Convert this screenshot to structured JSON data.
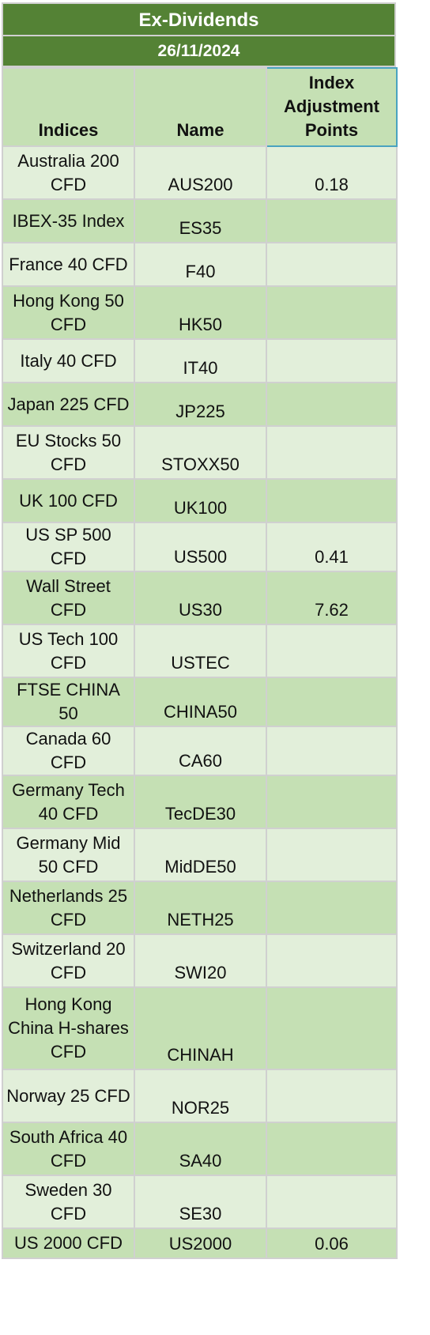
{
  "title": "Ex-Dividends",
  "date": "26/11/2024",
  "headers": {
    "indices": "Indices",
    "name": "Name",
    "adjustment": "Index Adjustment Points"
  },
  "rows": [
    {
      "index": "Australia 200 CFD",
      "name": "AUS200",
      "points": "0.18"
    },
    {
      "index": "IBEX-35 Index",
      "name": "ES35",
      "points": ""
    },
    {
      "index": "France 40 CFD",
      "name": "F40",
      "points": ""
    },
    {
      "index": "Hong Kong 50 CFD",
      "name": "HK50",
      "points": ""
    },
    {
      "index": "Italy 40 CFD",
      "name": "IT40",
      "points": ""
    },
    {
      "index": "Japan 225 CFD",
      "name": "JP225",
      "points": ""
    },
    {
      "index": "EU Stocks 50 CFD",
      "name": "STOXX50",
      "points": ""
    },
    {
      "index": "UK 100 CFD",
      "name": "UK100",
      "points": ""
    },
    {
      "index": "US SP 500 CFD",
      "name": "US500",
      "points": "0.41"
    },
    {
      "index": "Wall Street CFD",
      "name": "US30",
      "points": "7.62"
    },
    {
      "index": "US Tech 100 CFD",
      "name": "USTEC",
      "points": ""
    },
    {
      "index": "FTSE CHINA 50",
      "name": "CHINA50",
      "points": ""
    },
    {
      "index": "Canada 60 CFD",
      "name": "CA60",
      "points": ""
    },
    {
      "index": "Germany Tech 40 CFD",
      "name": "TecDE30",
      "points": ""
    },
    {
      "index": "Germany Mid 50 CFD",
      "name": "MidDE50",
      "points": ""
    },
    {
      "index": "Netherlands 25 CFD",
      "name": "NETH25",
      "points": ""
    },
    {
      "index": "Switzerland 20 CFD",
      "name": "SWI20",
      "points": ""
    },
    {
      "index": "Hong Kong China H-shares CFD",
      "name": "CHINAH",
      "points": ""
    },
    {
      "index": "Norway 25 CFD",
      "name": "NOR25",
      "points": ""
    },
    {
      "index": "South Africa 40 CFD",
      "name": "SA40",
      "points": ""
    },
    {
      "index": "Sweden 30 CFD",
      "name": "SE30",
      "points": ""
    },
    {
      "index": "US 2000 CFD",
      "name": "US2000",
      "points": "0.06"
    }
  ]
}
